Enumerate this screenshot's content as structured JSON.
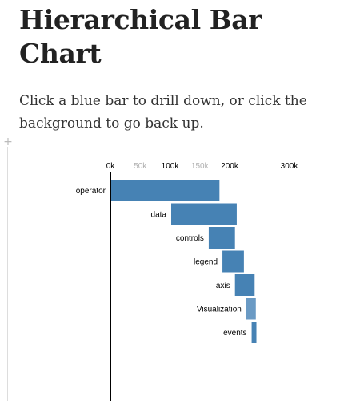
{
  "title": "Hierarchical Bar Chart",
  "description": "Click a blue bar to drill down, or click the background to go back up.",
  "colors": {
    "bar": "#4682b4",
    "bar_leaf": "#6a9ac4",
    "tick_label_major": "#000000",
    "tick_label_minor": "#b0b0b0"
  },
  "chart_data": {
    "type": "bar",
    "orientation": "horizontal",
    "layout": "staircase",
    "xlim": [
      0,
      330000
    ],
    "ticks": [
      {
        "value": 0,
        "label": "0k",
        "major": true
      },
      {
        "value": 50000,
        "label": "50k",
        "major": false
      },
      {
        "value": 100000,
        "label": "100k",
        "major": true
      },
      {
        "value": 150000,
        "label": "150k",
        "major": false
      },
      {
        "value": 200000,
        "label": "200k",
        "major": true
      },
      {
        "value": 300000,
        "label": "300k",
        "major": true
      }
    ],
    "bars": [
      {
        "label": "operator",
        "start": 0,
        "value": 183000,
        "has_children": true
      },
      {
        "label": "data",
        "start": 102000,
        "value": 110000,
        "has_children": true
      },
      {
        "label": "controls",
        "start": 165000,
        "value": 44000,
        "has_children": true
      },
      {
        "label": "legend",
        "start": 188000,
        "value": 36000,
        "has_children": true
      },
      {
        "label": "axis",
        "start": 209000,
        "value": 33000,
        "has_children": true
      },
      {
        "label": "Visualization",
        "start": 228000,
        "value": 16000,
        "has_children": false
      },
      {
        "label": "events",
        "start": 237000,
        "value": 8000,
        "has_children": true
      }
    ]
  }
}
